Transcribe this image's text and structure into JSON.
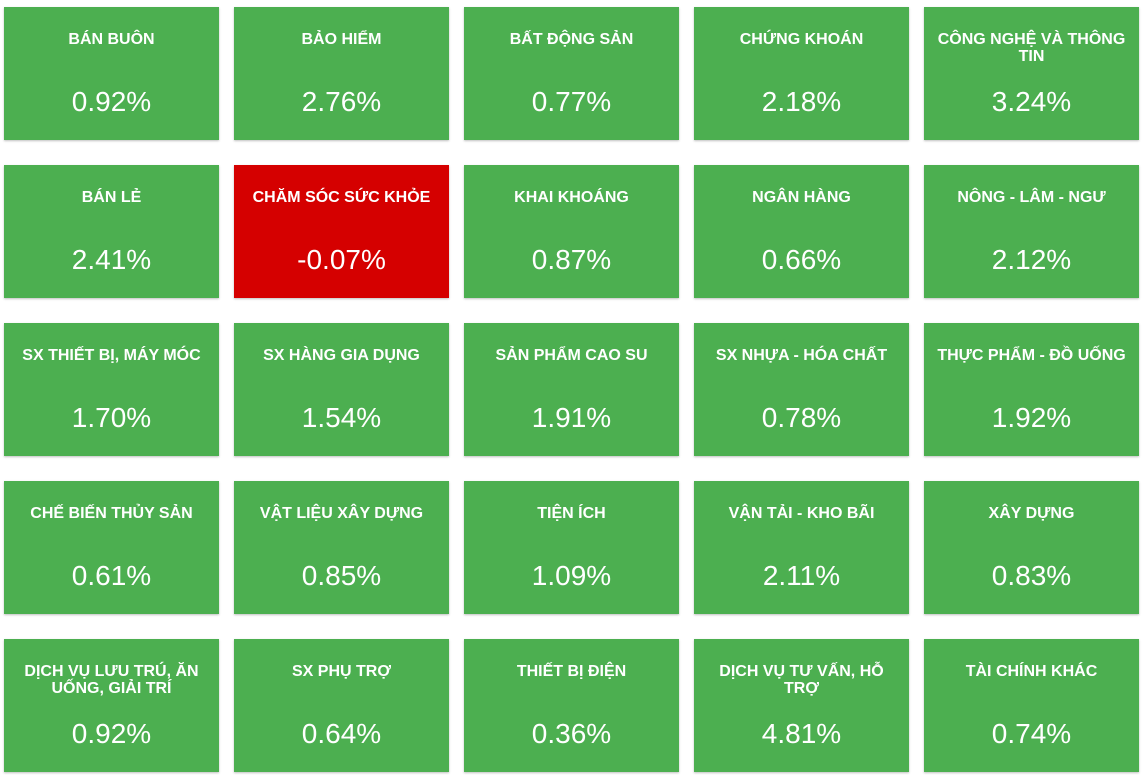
{
  "tiles": [
    {
      "label": "BÁN BUÔN",
      "value": "0.92%",
      "color": "#4caf50"
    },
    {
      "label": "BẢO HIỂM",
      "value": "2.76%",
      "color": "#4caf50"
    },
    {
      "label": "BẤT ĐỘNG SẢN",
      "value": "0.77%",
      "color": "#4caf50"
    },
    {
      "label": "CHỨNG KHOÁN",
      "value": "2.18%",
      "color": "#4caf50"
    },
    {
      "label": "CÔNG NGHỆ VÀ THÔNG TIN",
      "value": "3.24%",
      "color": "#4caf50"
    },
    {
      "label": "BÁN LẺ",
      "value": "2.41%",
      "color": "#4caf50"
    },
    {
      "label": "CHĂM SÓC SỨC KHỎE",
      "value": "-0.07%",
      "color": "#d50000"
    },
    {
      "label": "KHAI KHOÁNG",
      "value": "0.87%",
      "color": "#4caf50"
    },
    {
      "label": "NGÂN HÀNG",
      "value": "0.66%",
      "color": "#4caf50"
    },
    {
      "label": "NÔNG - LÂM - NGƯ",
      "value": "2.12%",
      "color": "#4caf50"
    },
    {
      "label": "SX THIẾT BỊ, MÁY MÓC",
      "value": "1.70%",
      "color": "#4caf50"
    },
    {
      "label": "SX HÀNG GIA DỤNG",
      "value": "1.54%",
      "color": "#4caf50"
    },
    {
      "label": "SẢN PHẨM CAO SU",
      "value": "1.91%",
      "color": "#4caf50"
    },
    {
      "label": "SX NHỰA - HÓA CHẤT",
      "value": "0.78%",
      "color": "#4caf50"
    },
    {
      "label": "THỰC PHẨM - ĐỒ UỐNG",
      "value": "1.92%",
      "color": "#4caf50"
    },
    {
      "label": "CHẾ BIẾN THỦY SẢN",
      "value": "0.61%",
      "color": "#4caf50"
    },
    {
      "label": "VẬT LIỆU XÂY DỰNG",
      "value": "0.85%",
      "color": "#4caf50"
    },
    {
      "label": "TIỆN ÍCH",
      "value": "1.09%",
      "color": "#4caf50"
    },
    {
      "label": "VẬN TẢI - KHO BÃI",
      "value": "2.11%",
      "color": "#4caf50"
    },
    {
      "label": "XÂY DỰNG",
      "value": "0.83%",
      "color": "#4caf50"
    },
    {
      "label": "DỊCH VỤ LƯU TRÚ, ĂN UỐNG, GIẢI TRÍ",
      "value": "0.92%",
      "color": "#4caf50"
    },
    {
      "label": "SX PHỤ TRỢ",
      "value": "0.64%",
      "color": "#4caf50"
    },
    {
      "label": "THIẾT BỊ ĐIỆN",
      "value": "0.36%",
      "color": "#4caf50"
    },
    {
      "label": "DỊCH VỤ TƯ VẤN, HỖ TRỢ",
      "value": "4.81%",
      "color": "#4caf50"
    },
    {
      "label": "TÀI CHÍNH KHÁC",
      "value": "0.74%",
      "color": "#4caf50"
    }
  ]
}
